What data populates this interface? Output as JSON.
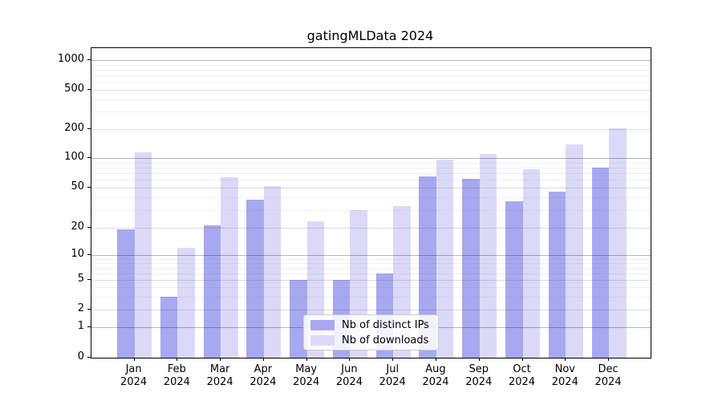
{
  "figure": {
    "title": "gatingMLData 2024"
  },
  "chart_data": {
    "type": "bar",
    "title": "gatingMLData 2024",
    "categories": [
      "Jan 2024",
      "Feb 2024",
      "Mar 2024",
      "Apr 2024",
      "May 2024",
      "Jun 2024",
      "Jul 2024",
      "Aug 2024",
      "Sep 2024",
      "Oct 2024",
      "Nov 2024",
      "Dec 2024"
    ],
    "months": [
      "Jan",
      "Feb",
      "Mar",
      "Apr",
      "May",
      "Jun",
      "Jul",
      "Aug",
      "Sep",
      "Oct",
      "Nov",
      "Dec"
    ],
    "year": "2024",
    "series": [
      {
        "name": "Nb of distinct IPs",
        "color": "#a8a8f0",
        "values": [
          19,
          3,
          21,
          38,
          5,
          5,
          6,
          65,
          62,
          37,
          46,
          80
        ]
      },
      {
        "name": "Nb of downloads",
        "color": "#dadaf8",
        "values": [
          115,
          12,
          64,
          52,
          23,
          30,
          33,
          97,
          110,
          77,
          140,
          205
        ]
      }
    ],
    "xlabel": "",
    "ylabel": "",
    "yscale": "asinh",
    "yticks": [
      0,
      1,
      2,
      5,
      10,
      20,
      50,
      100,
      200,
      500,
      1000
    ],
    "minor_gridlines": [
      3,
      4,
      6,
      7,
      8,
      9,
      30,
      40,
      60,
      70,
      80,
      90,
      300,
      400,
      600,
      700,
      800,
      900
    ],
    "ylim": [
      0,
      1325
    ],
    "grid": true,
    "legend_position": "lower center"
  },
  "colors": {
    "grid_major": "rgba(0,0,0,0.28)",
    "grid_mid": "rgba(0,0,0,0.13)",
    "grid_minor": "rgba(0,0,0,0.06)",
    "spine": "#000000",
    "background": "#ffffff"
  }
}
